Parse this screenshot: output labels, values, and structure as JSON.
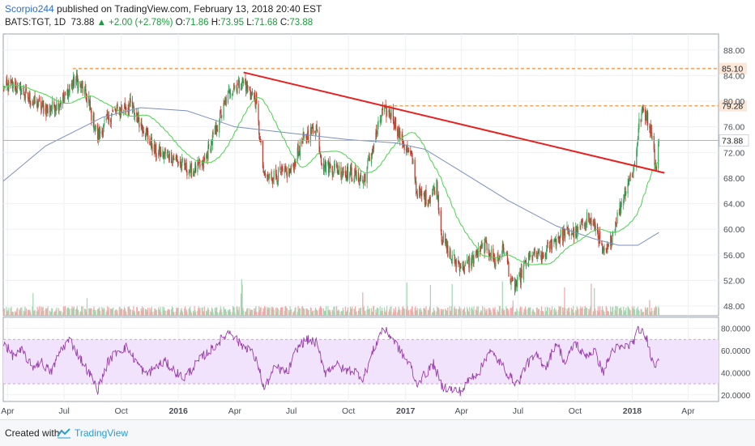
{
  "header": {
    "author": "Scorpio244",
    "published_text": " published on TradingView.com, February 13, 2018 20:40 EST",
    "symbol": "BATS:TGT, 1D",
    "last": "73.88",
    "change": "+2.00 (+2.78%)",
    "open_label": "O:",
    "open": "71.86",
    "high_label": "H:",
    "high": "73.95",
    "low_label": "L:",
    "low": "71.68",
    "close_label": "C:",
    "close": "73.88"
  },
  "footer": {
    "created_with": "Created with",
    "brand": "TradingView",
    "logo_icon": "tradingview-logo-icon"
  },
  "colors": {
    "candle_up": "#3aa65a",
    "candle_down": "#c0392b",
    "volume_up": "#9fd8b0",
    "volume_down": "#f1a7a7",
    "sma_short": "#47d64a",
    "sma_long": "#7b8fbf",
    "trendline": "#e82020",
    "resistance": "#f3a35c",
    "rsi_line": "#9b3fae",
    "rsi_band": "#f1e3fb",
    "last_price": "#aaaaaa"
  },
  "chart_data": [
    {
      "type": "candlestick",
      "panel": "price",
      "symbol": "BATS:TGT",
      "timeframe": "1D",
      "x_ticks": [
        "Apr",
        "Jul",
        "Oct",
        "2016",
        "Apr",
        "Jul",
        "Oct",
        "2017",
        "Apr",
        "Jul",
        "Oct",
        "2018",
        "Apr"
      ],
      "x_tick_dates": [
        "2015-04-01",
        "2015-07-01",
        "2015-10-01",
        "2016-01-01",
        "2016-04-01",
        "2016-07-01",
        "2016-10-01",
        "2017-01-01",
        "2017-04-01",
        "2017-07-01",
        "2017-10-01",
        "2018-01-01",
        "2018-04-01"
      ],
      "x_range": [
        "2015-03-25",
        "2018-05-20"
      ],
      "y_ticks": [
        "48.00",
        "52.00",
        "56.00",
        "60.00",
        "64.00",
        "68.00",
        "72.00",
        "76.00",
        "80.00",
        "84.00",
        "88.00"
      ],
      "y_tick_values": [
        48,
        52,
        56,
        60,
        64,
        68,
        72,
        76,
        80,
        84,
        88
      ],
      "ylim": [
        46.5,
        90.5
      ],
      "price_anchors": [
        [
          "2015-03-25",
          82.0
        ],
        [
          "2015-04-15",
          82.5
        ],
        [
          "2015-05-10",
          80.0
        ],
        [
          "2015-06-05",
          78.5
        ],
        [
          "2015-07-01",
          80.5
        ],
        [
          "2015-07-20",
          83.5
        ],
        [
          "2015-08-05",
          81.0
        ],
        [
          "2015-08-24",
          74.5
        ],
        [
          "2015-09-15",
          78.0
        ],
        [
          "2015-10-15",
          79.5
        ],
        [
          "2015-11-05",
          76.0
        ],
        [
          "2015-11-25",
          72.0
        ],
        [
          "2015-12-20",
          71.5
        ],
        [
          "2016-01-20",
          69.0
        ],
        [
          "2016-02-10",
          70.0
        ],
        [
          "2016-03-05",
          76.5
        ],
        [
          "2016-03-25",
          82.0
        ],
        [
          "2016-04-15",
          83.0
        ],
        [
          "2016-05-05",
          80.0
        ],
        [
          "2016-05-18",
          68.0
        ],
        [
          "2016-06-10",
          68.5
        ],
        [
          "2016-06-30",
          69.0
        ],
        [
          "2016-07-20",
          74.0
        ],
        [
          "2016-08-10",
          76.0
        ],
        [
          "2016-08-20",
          70.0
        ],
        [
          "2016-09-10",
          69.5
        ],
        [
          "2016-10-10",
          68.5
        ],
        [
          "2016-10-25",
          67.5
        ],
        [
          "2016-11-10",
          73.0
        ],
        [
          "2016-11-25",
          78.5
        ],
        [
          "2016-12-10",
          78.0
        ],
        [
          "2016-12-25",
          74.0
        ],
        [
          "2017-01-15",
          70.0
        ],
        [
          "2017-01-18",
          66.0
        ],
        [
          "2017-02-05",
          64.5
        ],
        [
          "2017-02-20",
          67.0
        ],
        [
          "2017-02-28",
          59.0
        ],
        [
          "2017-03-15",
          55.5
        ],
        [
          "2017-04-05",
          54.0
        ],
        [
          "2017-04-25",
          56.0
        ],
        [
          "2017-05-10",
          57.5
        ],
        [
          "2017-05-25",
          55.0
        ],
        [
          "2017-06-10",
          57.0
        ],
        [
          "2017-06-20",
          51.5
        ],
        [
          "2017-06-28",
          51.0
        ],
        [
          "2017-07-10",
          54.0
        ],
        [
          "2017-07-25",
          56.0
        ],
        [
          "2017-08-10",
          55.5
        ],
        [
          "2017-08-25",
          58.0
        ],
        [
          "2017-09-15",
          59.5
        ],
        [
          "2017-10-05",
          59.5
        ],
        [
          "2017-10-20",
          62.0
        ],
        [
          "2017-11-05",
          60.0
        ],
        [
          "2017-11-15",
          56.0
        ],
        [
          "2017-11-22",
          56.5
        ],
        [
          "2017-12-05",
          61.0
        ],
        [
          "2017-12-20",
          66.0
        ],
        [
          "2018-01-05",
          70.0
        ],
        [
          "2018-01-12",
          76.5
        ],
        [
          "2018-01-18",
          78.5
        ],
        [
          "2018-01-25",
          77.5
        ],
        [
          "2018-02-02",
          75.0
        ],
        [
          "2018-02-08",
          69.0
        ],
        [
          "2018-02-13",
          73.88
        ]
      ],
      "sma_short_label": "moving average (short)",
      "sma_long_label": "moving average (long)",
      "sma_long_anchors": [
        [
          "2015-03-25",
          67.5
        ],
        [
          "2015-06-01",
          73.0
        ],
        [
          "2015-09-01",
          77.5
        ],
        [
          "2015-11-01",
          79.0
        ],
        [
          "2016-01-15",
          78.5
        ],
        [
          "2016-04-01",
          76.0
        ],
        [
          "2016-07-01",
          75.0
        ],
        [
          "2016-10-01",
          74.0
        ],
        [
          "2016-12-15",
          73.5
        ],
        [
          "2017-02-01",
          72.5
        ],
        [
          "2017-04-01",
          69.0
        ],
        [
          "2017-06-15",
          64.5
        ],
        [
          "2017-09-01",
          60.5
        ],
        [
          "2017-11-01",
          58.5
        ],
        [
          "2017-12-10",
          57.5
        ],
        [
          "2018-01-10",
          57.5
        ],
        [
          "2018-02-13",
          59.5
        ]
      ],
      "trendline": [
        [
          "2016-04-15",
          84.5
        ],
        [
          "2018-02-22",
          68.8
        ]
      ],
      "resistance_levels": [
        {
          "value": 85.1,
          "label": "85.10",
          "from": "2015-07-15"
        },
        {
          "value": 79.28,
          "label": "79.28",
          "from": "2016-11-25"
        }
      ],
      "last_price_line": 73.88
    },
    {
      "type": "line",
      "panel": "rsi",
      "y_ticks": [
        "20.0000",
        "40.0000",
        "60.0000",
        "80.0000"
      ],
      "y_tick_values": [
        20,
        40,
        60,
        80
      ],
      "ylim": [
        14,
        90
      ],
      "band": [
        30,
        70
      ],
      "rsi_anchors": [
        [
          "2015-03-25",
          68
        ],
        [
          "2015-04-10",
          55
        ],
        [
          "2015-04-25",
          60
        ],
        [
          "2015-05-10",
          45
        ],
        [
          "2015-05-25",
          50
        ],
        [
          "2015-06-10",
          40
        ],
        [
          "2015-06-25",
          60
        ],
        [
          "2015-07-10",
          70
        ],
        [
          "2015-07-25",
          55
        ],
        [
          "2015-08-10",
          40
        ],
        [
          "2015-08-24",
          25
        ],
        [
          "2015-09-10",
          50
        ],
        [
          "2015-09-25",
          60
        ],
        [
          "2015-10-10",
          63
        ],
        [
          "2015-10-25",
          50
        ],
        [
          "2015-11-10",
          38
        ],
        [
          "2015-11-25",
          45
        ],
        [
          "2015-12-10",
          50
        ],
        [
          "2015-12-25",
          42
        ],
        [
          "2016-01-10",
          35
        ],
        [
          "2016-01-25",
          45
        ],
        [
          "2016-02-10",
          55
        ],
        [
          "2016-02-25",
          62
        ],
        [
          "2016-03-10",
          70
        ],
        [
          "2016-03-25",
          78
        ],
        [
          "2016-04-10",
          65
        ],
        [
          "2016-04-25",
          62
        ],
        [
          "2016-05-10",
          45
        ],
        [
          "2016-05-18",
          25
        ],
        [
          "2016-06-05",
          45
        ],
        [
          "2016-06-25",
          40
        ],
        [
          "2016-07-10",
          62
        ],
        [
          "2016-07-25",
          70
        ],
        [
          "2016-08-10",
          67
        ],
        [
          "2016-08-25",
          40
        ],
        [
          "2016-09-10",
          48
        ],
        [
          "2016-09-25",
          42
        ],
        [
          "2016-10-10",
          42
        ],
        [
          "2016-10-25",
          35
        ],
        [
          "2016-11-10",
          60
        ],
        [
          "2016-11-25",
          80
        ],
        [
          "2016-12-10",
          72
        ],
        [
          "2016-12-25",
          58
        ],
        [
          "2017-01-10",
          45
        ],
        [
          "2017-01-18",
          30
        ],
        [
          "2017-02-01",
          38
        ],
        [
          "2017-02-15",
          48
        ],
        [
          "2017-02-28",
          28
        ],
        [
          "2017-03-15",
          25
        ],
        [
          "2017-04-01",
          23
        ],
        [
          "2017-04-15",
          35
        ],
        [
          "2017-05-01",
          42
        ],
        [
          "2017-05-15",
          60
        ],
        [
          "2017-06-01",
          50
        ],
        [
          "2017-06-20",
          35
        ],
        [
          "2017-07-01",
          30
        ],
        [
          "2017-07-15",
          48
        ],
        [
          "2017-08-01",
          55
        ],
        [
          "2017-08-15",
          45
        ],
        [
          "2017-09-01",
          68
        ],
        [
          "2017-09-15",
          48
        ],
        [
          "2017-10-01",
          68
        ],
        [
          "2017-10-15",
          55
        ],
        [
          "2017-11-01",
          60
        ],
        [
          "2017-11-15",
          40
        ],
        [
          "2017-12-01",
          62
        ],
        [
          "2017-12-15",
          62
        ],
        [
          "2018-01-01",
          66
        ],
        [
          "2018-01-12",
          80
        ],
        [
          "2018-01-25",
          70
        ],
        [
          "2018-02-05",
          45
        ],
        [
          "2018-02-13",
          54
        ]
      ]
    }
  ]
}
